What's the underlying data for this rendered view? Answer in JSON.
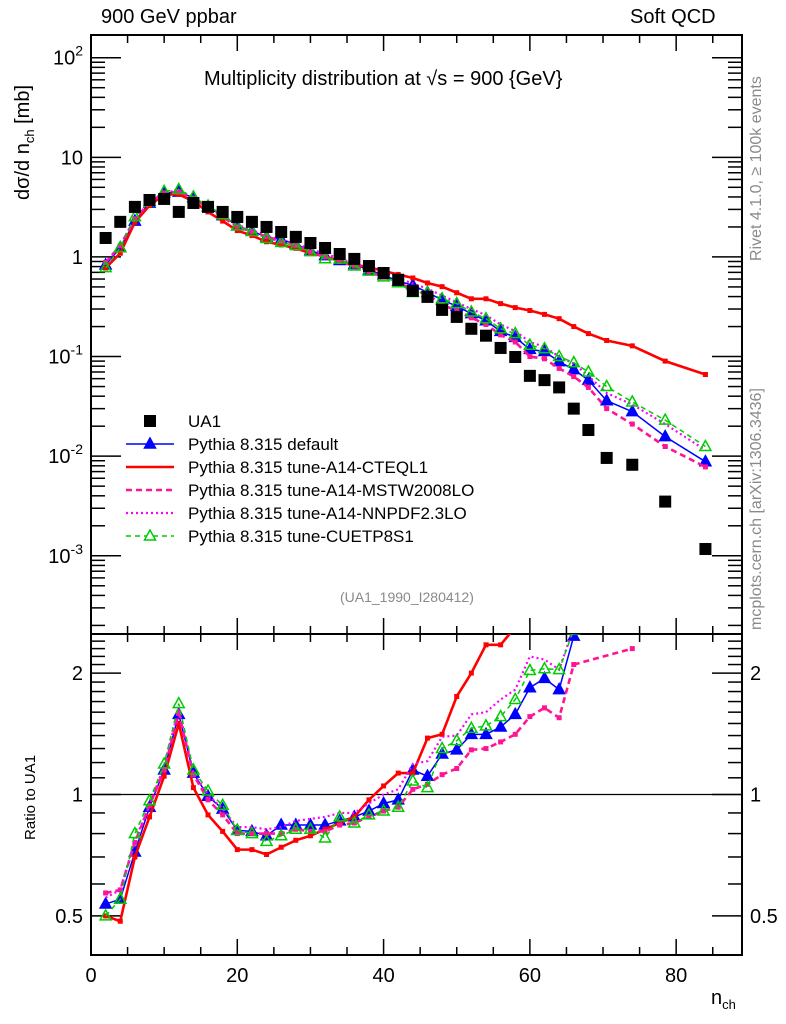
{
  "header": {
    "left": "900 GeV ppbar",
    "right": "Soft QCD"
  },
  "side_text": {
    "rivet": "Rivet 4.1.0, ≥ 100k events",
    "mcplots": "mcplots.cern.ch [arXiv:1306.3436]"
  },
  "reference": "(UA1_1990_I280412)",
  "chart_data": [
    {
      "id": "main",
      "type": "line",
      "title": "Multiplicity distribution at √s = 900 {GeV}",
      "xlabel": "n_ch",
      "ylabel": "dσ/d n_ch [mb]",
      "yscale": "log",
      "xlim": [
        0,
        89
      ],
      "ylim": [
        0.000164,
        169
      ],
      "yticks": [
        {
          "value": 100,
          "label": "10^2"
        },
        {
          "value": 10,
          "label": "10"
        },
        {
          "value": 1,
          "label": "1"
        },
        {
          "value": 0.1,
          "label": "10^-1"
        },
        {
          "value": 0.01,
          "label": "10^-2"
        },
        {
          "value": 0.001,
          "label": "10^-3"
        }
      ],
      "legend_position": "lower-left",
      "series": [
        {
          "name": "UA1",
          "style": "marker-square",
          "color": "#000000",
          "x": [
            2,
            4,
            6,
            8,
            10,
            12,
            14,
            16,
            18,
            20,
            22,
            24,
            26,
            28,
            30,
            32,
            34,
            36,
            38,
            40,
            42,
            44,
            46,
            48,
            50,
            52,
            54,
            56,
            58,
            60,
            62,
            64,
            66,
            68,
            70.5,
            74,
            78.5,
            84
          ],
          "y": [
            1.55,
            2.25,
            3.18,
            3.73,
            3.82,
            2.83,
            3.48,
            3.18,
            2.83,
            2.52,
            2.25,
            2.0,
            1.78,
            1.59,
            1.38,
            1.23,
            1.07,
            0.955,
            0.81,
            0.69,
            0.59,
            0.456,
            0.397,
            0.294,
            0.25,
            0.19,
            0.162,
            0.122,
            0.099,
            0.064,
            0.058,
            0.049,
            0.03,
            0.0183,
            0.0096,
            0.0082,
            0.0035,
            0.00117
          ]
        },
        {
          "name": "Pythia 8.315 default",
          "style": "solid-triangle",
          "color": "#0000ff",
          "x": [
            2,
            4,
            6,
            8,
            10,
            12,
            14,
            16,
            18,
            20,
            22,
            24,
            26,
            28,
            30,
            32,
            34,
            36,
            38,
            40,
            42,
            44,
            46,
            48,
            50,
            52,
            54,
            56,
            58,
            60,
            62,
            64,
            66,
            68,
            70.5,
            74,
            78.5,
            84
          ],
          "y": [
            0.83,
            1.24,
            2.29,
            3.47,
            4.39,
            4.47,
            3.93,
            3.15,
            2.6,
            2.05,
            1.82,
            1.58,
            1.5,
            1.34,
            1.16,
            1.03,
            0.92,
            0.84,
            0.74,
            0.66,
            0.57,
            0.52,
            0.44,
            0.37,
            0.32,
            0.27,
            0.229,
            0.179,
            0.156,
            0.118,
            0.1125,
            0.089,
            0.074,
            0.058,
            0.036,
            0.028,
            0.0157,
            0.0088
          ]
        },
        {
          "name": "Pythia 8.315 tune-A14-CTEQL1",
          "style": "solid-line",
          "color": "#ff0000",
          "x": [
            2,
            4,
            6,
            8,
            10,
            12,
            14,
            16,
            18,
            20,
            22,
            24,
            26,
            28,
            30,
            32,
            34,
            36,
            38,
            40,
            42,
            44,
            46,
            48,
            50,
            52,
            54,
            56,
            58,
            60,
            62,
            64,
            66,
            68,
            70.5,
            74,
            78.5,
            84
          ],
          "y": [
            0.775,
            1.09,
            2.23,
            3.28,
            4.24,
            4.25,
            3.62,
            2.83,
            2.29,
            1.84,
            1.64,
            1.42,
            1.32,
            1.22,
            1.09,
            1.01,
            0.91,
            0.84,
            0.786,
            0.725,
            0.667,
            0.615,
            0.548,
            0.503,
            0.437,
            0.38,
            0.38,
            0.34,
            0.31,
            0.29,
            0.265,
            0.24,
            0.2,
            0.17,
            0.145,
            0.128,
            0.09,
            0.066
          ]
        },
        {
          "name": "Pythia 8.315 tune-A14-MSTW2008LO",
          "style": "dashed",
          "color": "#ff1493",
          "x": [
            2,
            4,
            6,
            8,
            10,
            12,
            14,
            16,
            18,
            20,
            22,
            24,
            26,
            28,
            30,
            32,
            34,
            36,
            38,
            40,
            42,
            44,
            46,
            48,
            50,
            52,
            54,
            56,
            58,
            60,
            62,
            64,
            66,
            68,
            70.5,
            74,
            78.5,
            84
          ],
          "y": [
            0.88,
            1.3,
            2.41,
            3.5,
            4.4,
            4.5,
            3.9,
            3.1,
            2.52,
            2.0,
            1.8,
            1.6,
            1.42,
            1.3,
            1.12,
            1.0,
            0.9,
            0.81,
            0.71,
            0.63,
            0.55,
            0.47,
            0.42,
            0.33,
            0.29,
            0.245,
            0.21,
            0.165,
            0.14,
            0.1,
            0.095,
            0.076,
            0.063,
            0.049,
            0.03,
            0.021,
            0.0125,
            0.0078
          ]
        },
        {
          "name": "Pythia 8.315 tune-A14-NNPDF2.3LO",
          "style": "dotted",
          "color": "#ff00ff",
          "x": [
            2,
            4,
            6,
            8,
            10,
            12,
            14,
            16,
            18,
            20,
            22,
            24,
            26,
            28,
            30,
            32,
            34,
            36,
            38,
            40,
            42,
            44,
            46,
            48,
            50,
            52,
            54,
            56,
            58,
            60,
            62,
            64,
            66,
            68,
            70.5,
            74,
            78.5,
            84
          ],
          "y": [
            0.86,
            1.3,
            2.45,
            3.5,
            4.5,
            4.6,
            3.95,
            3.2,
            2.6,
            2.1,
            1.86,
            1.63,
            1.48,
            1.36,
            1.2,
            1.08,
            0.96,
            0.86,
            0.77,
            0.69,
            0.61,
            0.54,
            0.48,
            0.41,
            0.35,
            0.3,
            0.26,
            0.21,
            0.18,
            0.14,
            0.125,
            0.1,
            0.085,
            0.064,
            0.043,
            0.033,
            0.021,
            0.0115
          ]
        },
        {
          "name": "Pythia 8.315 tune-CUETP8S1",
          "style": "dashed-open-triangle",
          "color": "#00cc00",
          "x": [
            2,
            4,
            6,
            8,
            10,
            12,
            14,
            16,
            18,
            20,
            22,
            24,
            26,
            28,
            30,
            32,
            34,
            36,
            38,
            40,
            42,
            44,
            46,
            48,
            50,
            52,
            54,
            56,
            58,
            60,
            62,
            64,
            66,
            68,
            70.5,
            74,
            78.5,
            84
          ],
          "y": [
            0.78,
            1.24,
            2.54,
            3.6,
            4.55,
            4.75,
            4.0,
            3.24,
            2.66,
            2.05,
            1.8,
            1.53,
            1.4,
            1.3,
            1.13,
            0.96,
            0.95,
            0.81,
            0.72,
            0.63,
            0.55,
            0.44,
            0.44,
            0.38,
            0.34,
            0.28,
            0.24,
            0.19,
            0.17,
            0.13,
            0.12,
            0.1,
            0.087,
            0.07,
            0.05,
            0.035,
            0.023,
            0.0125
          ]
        }
      ]
    },
    {
      "id": "ratio",
      "type": "line",
      "title": "",
      "xlabel": "n_ch",
      "ylabel": "Ratio to UA1",
      "yscale": "log",
      "xlim": [
        0,
        89
      ],
      "ylim": [
        0.4,
        2.5
      ],
      "reference_line": 1,
      "xticks": [
        0,
        20,
        40,
        60,
        80
      ],
      "yticks": [
        {
          "value": 2,
          "label": "2"
        },
        {
          "value": 1,
          "label": "1"
        },
        {
          "value": 0.5,
          "label": "0.5"
        }
      ],
      "series": [
        {
          "name": "Pythia 8.315 default",
          "color": "#0000ff",
          "x": [
            2,
            4,
            6,
            8,
            10,
            12,
            14,
            16,
            18,
            20,
            22,
            24,
            26,
            28,
            30,
            32,
            34,
            36,
            38,
            40,
            42,
            44,
            46,
            48,
            50,
            52,
            54,
            56,
            58,
            60,
            62,
            64,
            66
          ],
          "y": [
            0.535,
            0.55,
            0.72,
            0.93,
            1.15,
            1.58,
            1.13,
            0.99,
            0.92,
            0.815,
            0.81,
            0.79,
            0.84,
            0.84,
            0.84,
            0.84,
            0.86,
            0.88,
            0.91,
            0.95,
            0.97,
            1.15,
            1.11,
            1.26,
            1.29,
            1.41,
            1.41,
            1.47,
            1.58,
            1.84,
            1.94,
            1.82,
            2.47
          ]
        },
        {
          "name": "Pythia 8.315 tune-A14-CTEQL1",
          "color": "#ff0000",
          "x": [
            2,
            4,
            6,
            8,
            10,
            12,
            14,
            16,
            18,
            20,
            22,
            24,
            26,
            28,
            30,
            32,
            34,
            36,
            38,
            40,
            42,
            44,
            46,
            48,
            50,
            52,
            54,
            56,
            58
          ],
          "y": [
            0.5,
            0.485,
            0.7,
            0.88,
            1.11,
            1.5,
            1.04,
            0.89,
            0.81,
            0.73,
            0.73,
            0.71,
            0.74,
            0.77,
            0.79,
            0.82,
            0.85,
            0.88,
            0.97,
            1.05,
            1.13,
            1.13,
            1.38,
            1.41,
            1.75,
            2.0,
            2.35,
            2.35,
            2.6
          ]
        },
        {
          "name": "Pythia 8.315 tune-A14-MSTW2008LO",
          "color": "#ff1493",
          "x": [
            2,
            4,
            6,
            8,
            10,
            12,
            14,
            16,
            18,
            20,
            22,
            24,
            26,
            28,
            30,
            32,
            34,
            36,
            38,
            40,
            42,
            44,
            46,
            48,
            50,
            52,
            54,
            56,
            58,
            60,
            62,
            64,
            66,
            74
          ],
          "y": [
            0.57,
            0.58,
            0.76,
            0.94,
            1.15,
            1.59,
            1.12,
            0.97,
            0.89,
            0.8,
            0.8,
            0.8,
            0.8,
            0.82,
            0.81,
            0.81,
            0.84,
            0.85,
            0.88,
            0.91,
            0.93,
            1.03,
            1.06,
            1.12,
            1.16,
            1.29,
            1.3,
            1.35,
            1.41,
            1.56,
            1.64,
            1.55,
            2.1,
            2.3
          ]
        },
        {
          "name": "Pythia 8.315 tune-A14-NNPDF2.3LO",
          "color": "#ff00ff",
          "x": [
            2,
            4,
            6,
            8,
            10,
            12,
            14,
            16,
            18,
            20,
            22,
            24,
            26,
            28,
            30,
            32,
            34,
            36,
            38,
            40,
            42,
            44,
            46,
            48,
            50,
            52,
            54,
            56,
            58,
            60,
            62,
            64,
            66
          ],
          "y": [
            0.555,
            0.58,
            0.77,
            0.94,
            1.18,
            1.63,
            1.13,
            1.0,
            0.92,
            0.83,
            0.83,
            0.82,
            0.83,
            0.86,
            0.87,
            0.88,
            0.9,
            0.9,
            0.95,
            1.0,
            1.03,
            1.19,
            1.21,
            1.39,
            1.4,
            1.58,
            1.6,
            1.72,
            1.82,
            2.2,
            2.16,
            2.04,
            2.6
          ]
        },
        {
          "name": "Pythia 8.315 tune-CUETP8S1",
          "color": "#00cc00",
          "x": [
            2,
            4,
            6,
            8,
            10,
            12,
            14,
            16,
            18,
            20,
            22,
            24,
            26,
            28,
            30,
            32,
            34,
            36,
            38,
            40,
            42,
            44,
            46,
            48,
            50,
            52,
            54,
            56,
            58,
            60,
            62,
            64,
            66
          ],
          "y": [
            0.5,
            0.55,
            0.8,
            0.965,
            1.19,
            1.68,
            1.15,
            1.02,
            0.94,
            0.815,
            0.8,
            0.765,
            0.79,
            0.82,
            0.82,
            0.78,
            0.88,
            0.85,
            0.89,
            0.91,
            0.93,
            1.08,
            1.04,
            1.3,
            1.36,
            1.46,
            1.48,
            1.56,
            1.72,
            2.03,
            2.05,
            2.04,
            2.56
          ]
        }
      ]
    }
  ]
}
